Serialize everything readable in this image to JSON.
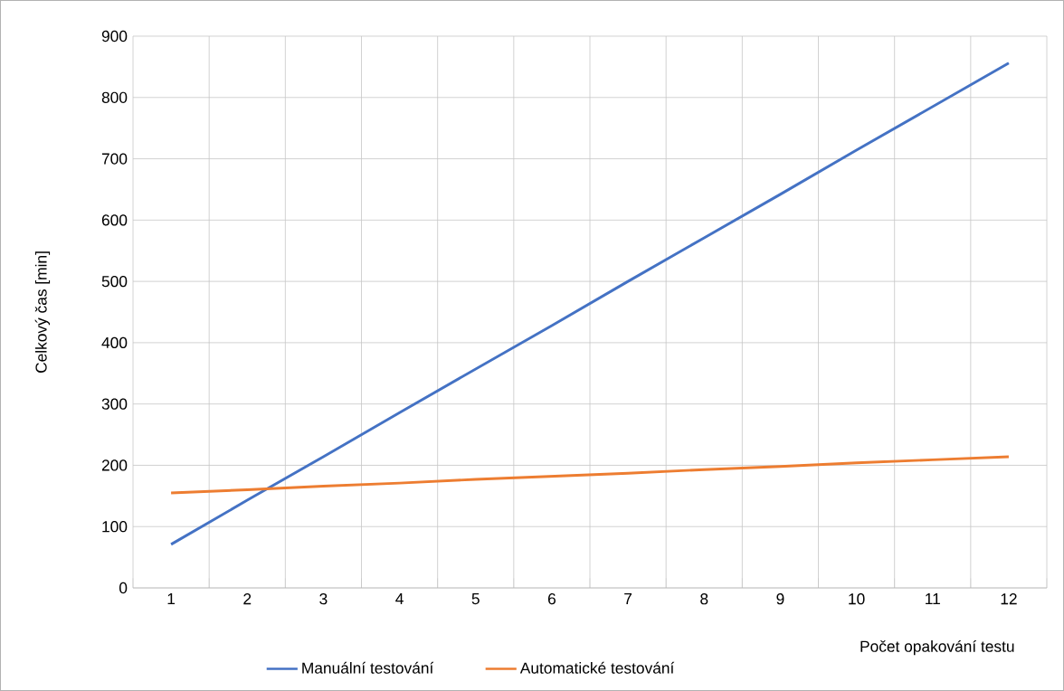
{
  "chart_data": {
    "type": "line",
    "xlabel": "Počet  opakování testu",
    "ylabel": "Celkový čas [min]",
    "categories": [
      "1",
      "2",
      "3",
      "4",
      "5",
      "6",
      "7",
      "8",
      "9",
      "10",
      "11",
      "12"
    ],
    "series": [
      {
        "name": "Manuální testování",
        "color": "#4472c4",
        "values": [
          71,
          143,
          214,
          286,
          357,
          428,
          500,
          571,
          642,
          714,
          785,
          856
        ]
      },
      {
        "name": "Automatické testování",
        "color": "#ed7d31",
        "values": [
          155,
          160,
          166,
          171,
          177,
          182,
          187,
          193,
          198,
          204,
          209,
          214
        ]
      }
    ],
    "ylim": [
      0,
      900
    ],
    "yticks": [
      0,
      100,
      200,
      300,
      400,
      500,
      600,
      700,
      800,
      900
    ],
    "grid": true,
    "legend": "bottom",
    "marker": "none",
    "line_style": "solid"
  }
}
